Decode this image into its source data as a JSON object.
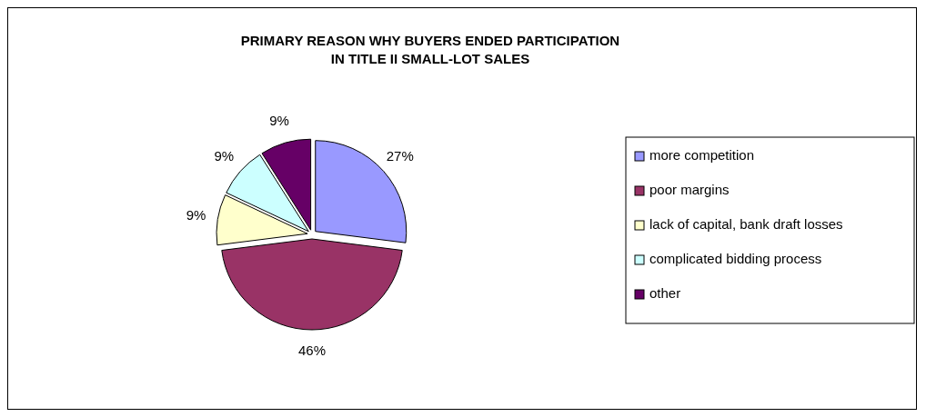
{
  "chart_data": {
    "type": "pie",
    "title": "PRIMARY REASON WHY BUYERS ENDED PARTICIPATION\nIN TITLE II SMALL-LOT SALES",
    "categories": [
      "more competition",
      "poor margins",
      "lack of capital, bank draft losses",
      "complicated bidding process",
      "other"
    ],
    "values": [
      27,
      46,
      9,
      9,
      9
    ],
    "colors": [
      "#9999ff",
      "#993366",
      "#ffffcc",
      "#ccffff",
      "#660066"
    ],
    "value_labels": [
      "27%",
      "46%",
      "9%",
      "9%",
      "9%"
    ],
    "legend": "right"
  }
}
